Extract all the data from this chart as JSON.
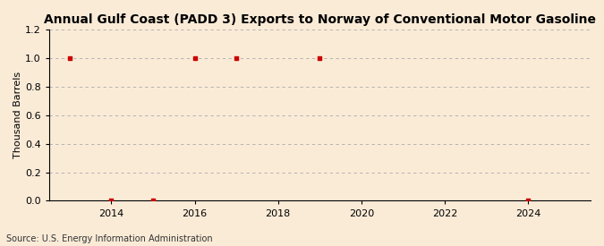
{
  "title": "Annual Gulf Coast (PADD 3) Exports to Norway of Conventional Motor Gasoline",
  "ylabel": "Thousand Barrels",
  "source": "Source: U.S. Energy Information Administration",
  "background_color": "#faebd7",
  "x_data": [
    2013,
    2014,
    2015,
    2016,
    2017,
    2019,
    2024
  ],
  "y_data": [
    1.0,
    0.0,
    0.0,
    1.0,
    1.0,
    1.0,
    0.0
  ],
  "marker_color": "#cc0000",
  "marker_size": 3.5,
  "xlim": [
    2012.5,
    2025.5
  ],
  "ylim": [
    0.0,
    1.2
  ],
  "yticks": [
    0.0,
    0.2,
    0.4,
    0.6,
    0.8,
    1.0,
    1.2
  ],
  "xticks": [
    2014,
    2016,
    2018,
    2020,
    2022,
    2024
  ],
  "grid_color": "#aaaaaa",
  "title_fontsize": 10,
  "label_fontsize": 8,
  "tick_fontsize": 8,
  "source_fontsize": 7
}
